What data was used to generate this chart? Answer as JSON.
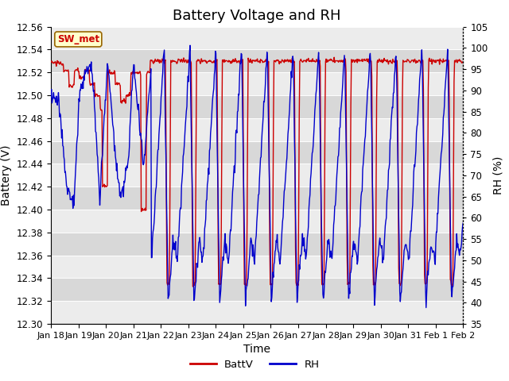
{
  "title": "Battery Voltage and RH",
  "xlabel": "Time",
  "ylabel_left": "Battery (V)",
  "ylabel_right": "RH (%)",
  "station_label": "SW_met",
  "ylim_left": [
    12.3,
    12.56
  ],
  "ylim_right": [
    35,
    105
  ],
  "yticks_left": [
    12.3,
    12.32,
    12.34,
    12.36,
    12.38,
    12.4,
    12.42,
    12.44,
    12.46,
    12.48,
    12.5,
    12.52,
    12.54,
    12.56
  ],
  "yticks_right": [
    35,
    40,
    45,
    50,
    55,
    60,
    65,
    70,
    75,
    80,
    85,
    90,
    95,
    100,
    105
  ],
  "xtick_labels": [
    "Jan 18",
    "Jan 19",
    "Jan 20",
    "Jan 21",
    "Jan 22",
    "Jan 23",
    "Jan 24",
    "Jan 25",
    "Jan 26",
    "Jan 27",
    "Jan 28",
    "Jan 29",
    "Jan 30",
    "Jan 31",
    "Feb 1",
    "Feb 2"
  ],
  "battv_color": "#cc0000",
  "rh_color": "#0000cc",
  "background_dark": "#d8d8d8",
  "background_light": "#ececec",
  "grid_color": "#ffffff",
  "title_fontsize": 13,
  "label_fontsize": 10,
  "tick_fontsize": 8.5
}
